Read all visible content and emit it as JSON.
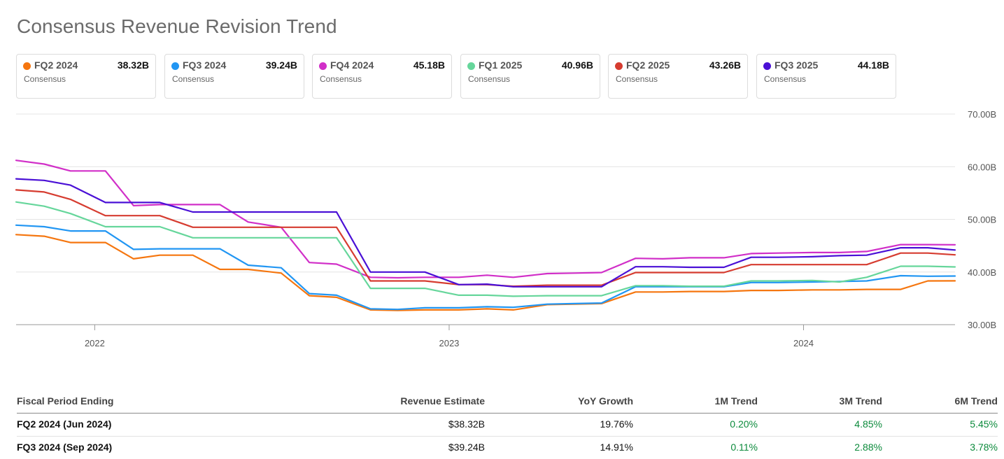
{
  "page": {
    "title": "Consensus Revenue Revision Trend"
  },
  "cards": [
    {
      "name": "FQ2 2024",
      "value": "38.32B",
      "sub": "Consensus",
      "color": "#f5760f"
    },
    {
      "name": "FQ3 2024",
      "value": "39.24B",
      "sub": "Consensus",
      "color": "#2196f3"
    },
    {
      "name": "FQ4 2024",
      "value": "45.18B",
      "sub": "Consensus",
      "color": "#d12fc8"
    },
    {
      "name": "FQ1 2025",
      "value": "40.96B",
      "sub": "Consensus",
      "color": "#66d69b"
    },
    {
      "name": "FQ2 2025",
      "value": "43.26B",
      "sub": "Consensus",
      "color": "#d63c30"
    },
    {
      "name": "FQ3 2025",
      "value": "44.18B",
      "sub": "Consensus",
      "color": "#4a10d6"
    }
  ],
  "chart_data": {
    "type": "line",
    "title": "Consensus Revenue Revision Trend",
    "xlabel": "",
    "ylabel": "",
    "x_ticks": [
      "2022",
      "2023",
      "2024"
    ],
    "y_ticks": [
      "30.00B",
      "40.00B",
      "50.00B",
      "60.00B",
      "70.00B"
    ],
    "ylim": [
      30,
      70
    ],
    "y_unit": "B",
    "grid": true,
    "x": [
      "2021-10-12",
      "2021-11-10",
      "2021-12-07",
      "2022-01-12",
      "2022-02-10",
      "2022-03-09",
      "2022-04-12",
      "2022-05-10",
      "2022-06-08",
      "2022-07-12",
      "2022-08-10",
      "2022-09-07",
      "2022-10-12",
      "2022-11-09",
      "2022-12-07",
      "2023-01-11",
      "2023-02-09",
      "2023-03-08",
      "2023-04-12",
      "2023-05-10",
      "2023-06-07",
      "2023-07-12",
      "2023-08-09",
      "2023-09-06",
      "2023-10-11",
      "2023-11-08",
      "2023-12-06",
      "2024-01-10",
      "2024-02-07",
      "2024-03-06",
      "2024-04-10",
      "2024-05-08",
      "2024-06-05"
    ],
    "series": [
      {
        "name": "FQ2 2024",
        "color": "#f5760f",
        "values": [
          47.1,
          46.8,
          45.6,
          45.6,
          42.5,
          43.2,
          43.2,
          40.5,
          40.5,
          39.8,
          35.5,
          35.2,
          32.8,
          32.7,
          32.8,
          32.8,
          33.0,
          32.8,
          33.8,
          33.9,
          34.0,
          36.2,
          36.2,
          36.3,
          36.3,
          36.5,
          36.5,
          36.6,
          36.6,
          36.7,
          36.7,
          38.3,
          38.32
        ]
      },
      {
        "name": "FQ3 2024",
        "color": "#2196f3",
        "values": [
          48.9,
          48.6,
          47.8,
          47.8,
          44.3,
          44.4,
          44.4,
          44.4,
          41.3,
          40.8,
          35.9,
          35.6,
          33.0,
          32.9,
          33.2,
          33.2,
          33.4,
          33.3,
          33.9,
          34.0,
          34.1,
          37.2,
          37.2,
          37.2,
          37.2,
          38.0,
          38.0,
          38.1,
          38.2,
          38.3,
          39.3,
          39.2,
          39.24
        ]
      },
      {
        "name": "FQ4 2024",
        "color": "#d12fc8",
        "values": [
          61.2,
          60.5,
          59.2,
          59.2,
          52.6,
          52.8,
          52.8,
          52.8,
          49.5,
          48.5,
          41.8,
          41.5,
          39.0,
          38.9,
          39.0,
          39.0,
          39.4,
          39.0,
          39.7,
          39.8,
          39.9,
          42.6,
          42.5,
          42.7,
          42.7,
          43.5,
          43.6,
          43.7,
          43.7,
          43.9,
          45.2,
          45.2,
          45.18
        ]
      },
      {
        "name": "FQ1 2025",
        "color": "#66d69b",
        "values": [
          53.3,
          52.5,
          51.1,
          48.6,
          48.6,
          48.6,
          46.5,
          46.5,
          46.5,
          46.5,
          46.5,
          46.5,
          36.9,
          36.9,
          36.9,
          35.6,
          35.6,
          35.4,
          35.5,
          35.5,
          35.5,
          37.4,
          37.4,
          37.3,
          37.3,
          38.3,
          38.3,
          38.4,
          38.1,
          39.0,
          41.1,
          41.1,
          40.96
        ]
      },
      {
        "name": "FQ2 2025",
        "color": "#d63c30",
        "values": [
          55.6,
          55.2,
          53.8,
          50.7,
          50.7,
          50.7,
          48.5,
          48.5,
          48.5,
          48.5,
          48.5,
          48.5,
          38.3,
          38.3,
          38.3,
          37.6,
          37.6,
          37.3,
          37.5,
          37.5,
          37.5,
          39.9,
          39.9,
          39.9,
          39.9,
          41.4,
          41.4,
          41.4,
          41.4,
          41.4,
          43.6,
          43.6,
          43.26
        ]
      },
      {
        "name": "FQ3 2025",
        "color": "#4a10d6",
        "values": [
          57.7,
          57.4,
          56.5,
          53.2,
          53.2,
          53.2,
          51.4,
          51.4,
          51.4,
          51.4,
          51.4,
          51.4,
          40.0,
          40.0,
          40.0,
          37.6,
          37.7,
          37.2,
          37.2,
          37.2,
          37.2,
          41.0,
          41.0,
          40.9,
          40.9,
          42.8,
          42.8,
          42.9,
          43.1,
          43.2,
          44.6,
          44.6,
          44.18
        ]
      }
    ]
  },
  "table": {
    "headers": [
      "Fiscal Period Ending",
      "Revenue Estimate",
      "YoY Growth",
      "1M Trend",
      "3M Trend",
      "6M Trend"
    ],
    "rows": [
      [
        "FQ2 2024 (Jun 2024)",
        "$38.32B",
        "19.76%",
        "0.20%",
        "4.85%",
        "5.45%"
      ],
      [
        "FQ3 2024 (Sep 2024)",
        "$39.24B",
        "14.91%",
        "0.11%",
        "2.88%",
        "3.78%"
      ]
    ]
  }
}
